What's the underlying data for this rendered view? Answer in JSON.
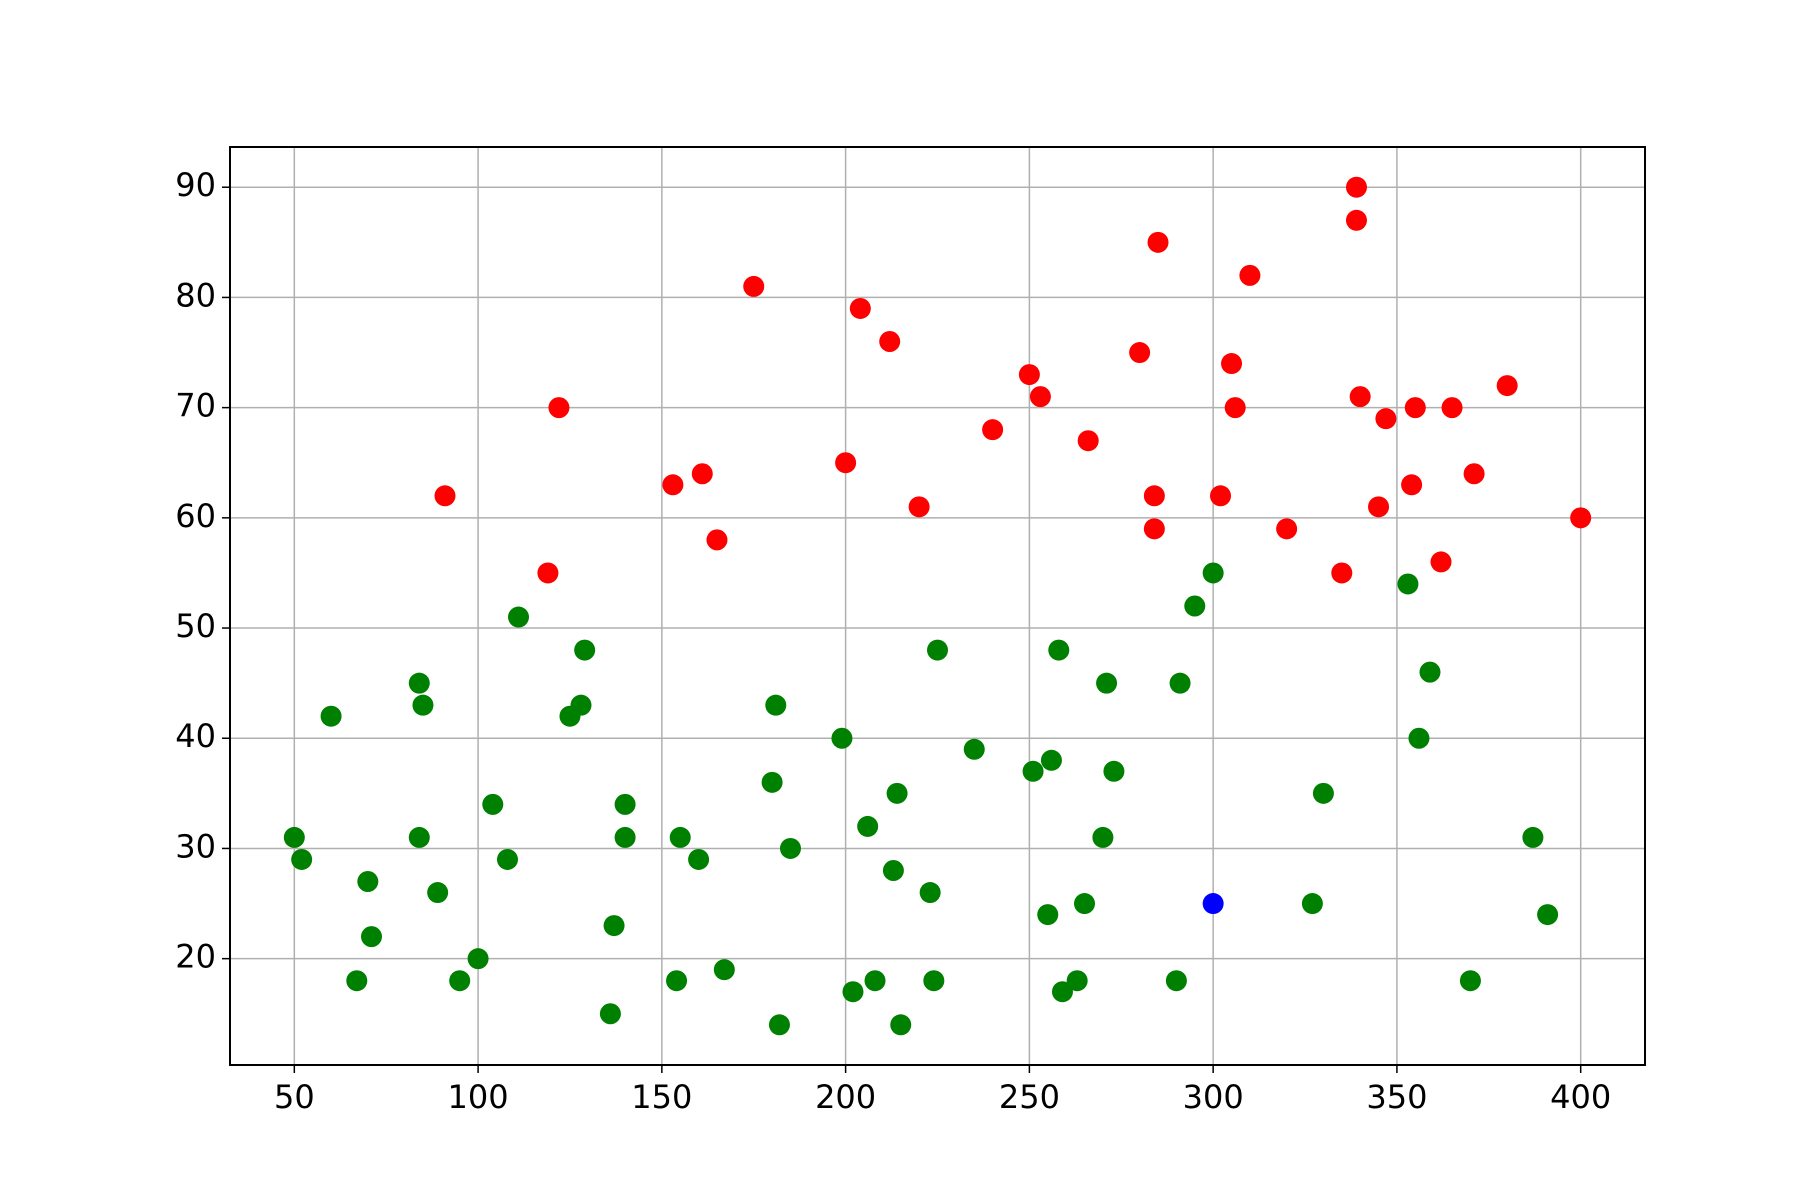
{
  "chart_data": {
    "type": "scatter",
    "xlim": [
      32.5,
      417.5
    ],
    "ylim": [
      10.35,
      93.65
    ],
    "xticks": [
      50,
      100,
      150,
      200,
      250,
      300,
      350,
      400
    ],
    "yticks": [
      20,
      30,
      40,
      50,
      60,
      70,
      80,
      90
    ],
    "grid": true,
    "series": [
      {
        "color": "red",
        "x": [
          91,
          122,
          119,
          153,
          161,
          165,
          175,
          200,
          204,
          212,
          220,
          240,
          250,
          253,
          266,
          280,
          284,
          284,
          285,
          302,
          305,
          306,
          310,
          320,
          335,
          339,
          339,
          340,
          345,
          347,
          354,
          355,
          362,
          365,
          371,
          380,
          400
        ],
        "values": [
          62,
          70,
          55,
          63,
          64,
          58,
          81,
          65,
          79,
          76,
          61,
          68,
          73,
          71,
          67,
          75,
          62,
          59,
          85,
          62,
          74,
          70,
          82,
          59,
          55,
          90,
          87,
          71,
          61,
          69,
          63,
          70,
          56,
          70,
          64,
          72,
          60
        ]
      },
      {
        "color": "green",
        "x": [
          50,
          52,
          60,
          67,
          70,
          71,
          84,
          84,
          85,
          89,
          95,
          100,
          104,
          108,
          111,
          125,
          128,
          129,
          136,
          137,
          140,
          140,
          154,
          155,
          160,
          167,
          180,
          181,
          182,
          185,
          199,
          202,
          206,
          208,
          213,
          214,
          215,
          223,
          224,
          225,
          235,
          251,
          255,
          256,
          258,
          259,
          263,
          265,
          270,
          271,
          273,
          290,
          291,
          295,
          300,
          327,
          330,
          353,
          356,
          359,
          370,
          387,
          391
        ],
        "values": [
          31,
          29,
          42,
          18,
          27,
          22,
          45,
          31,
          43,
          26,
          18,
          20,
          34,
          29,
          51,
          42,
          43,
          48,
          15,
          23,
          34,
          31,
          18,
          31,
          29,
          19,
          36,
          43,
          14,
          30,
          40,
          17,
          32,
          18,
          28,
          35,
          14,
          26,
          18,
          48,
          39,
          37,
          24,
          38,
          48,
          17,
          18,
          25,
          31,
          45,
          37,
          18,
          45,
          52,
          55,
          25,
          35,
          54,
          40,
          46,
          18,
          31,
          24
        ]
      },
      {
        "color": "blue",
        "x": [
          300
        ],
        "values": [
          25
        ]
      }
    ]
  }
}
